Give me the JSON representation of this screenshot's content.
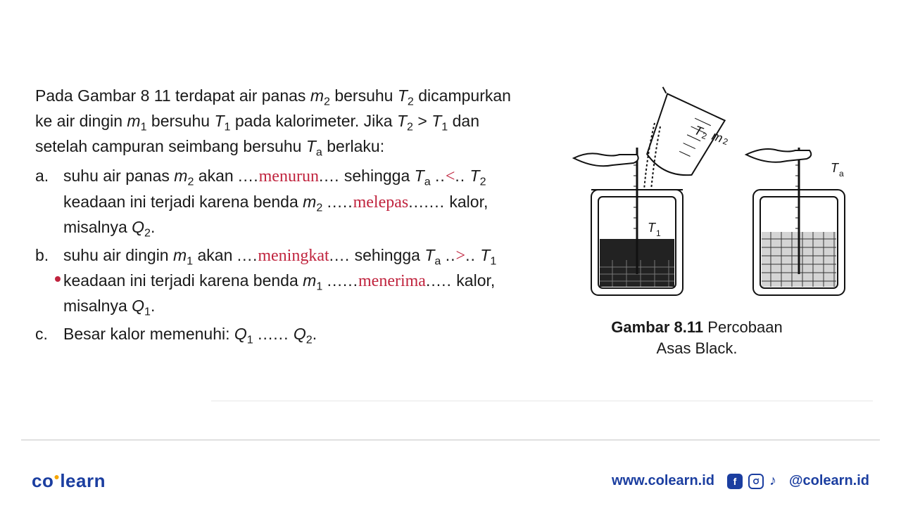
{
  "text": {
    "intro_html": "Pada Gambar 8 11 terdapat air panas <span class='ital'>m</span><span class='sub'>2</span> bersuhu <span class='ital'>T</span><span class='sub'>2</span> dicampurkan ke air dingin <span class='ital'>m</span><span class='sub'>1</span> bersuhu <span class='ital'>T</span><span class='sub'>1</span> pada kalorimeter. Jika <span class='ital'>T</span><span class='sub'>2</span> &gt; <span class='ital'>T</span><span class='sub'>1</span> dan setelah campuran seimbang bersuhu <span class='ital'>T</span><span class='sub'>a</span> berlaku:",
    "a_marker": "a.",
    "a_html": "suhu air panas <span class='ital'>m</span><span class='sub'>2</span> akan <span class='dots'>....</span><span class='ann'>menurun</span><span class='dots'>....</span> sehingga <span class='ital'>T</span><span class='sub'>a</span> <span class='dots'>..</span><span class='ann'>&lt;</span><span class='dots'>..</span> <span class='ital'>T</span><span class='sub'>2</span> keadaan ini terjadi karena benda <span class='ital'>m</span><span class='sub'>2</span> <span class='dots'>.....</span><span class='ann'>melepas</span><span class='dots'>.......</span> kalor, misalnya <span class='ital'>Q</span><span class='sub'>2</span>.",
    "b_marker": "b.",
    "b_html": "suhu air dingin <span class='ital'>m</span><span class='sub'>1</span> akan <span class='dots'>....</span><span class='ann'>meningkat</span><span class='dots'>....</span> sehingga <span class='ital'>T</span><span class='sub'>a</span> <span class='dots'>..</span><span class='ann'>&gt;</span><span class='dots'>..</span> <span class='ital'>T</span><span class='sub'>1</span> keadaan ini terjadi karena benda <span class='ital'>m</span><span class='sub'>1</span> <span class='dots'>......</span><span class='ann'>menerima</span><span class='dots'>.....</span> kalor, misalnya <span class='ital'>Q</span><span class='sub'>1</span>.",
    "c_marker": "c.",
    "c_html": "Besar kalor memenuhi: <span class='ital'>Q</span><span class='sub'>1</span> <span class='dots'>......</span> <span class='ital'>Q</span><span class='sub'>2</span>."
  },
  "figure": {
    "caption_label": "Gambar 8.11",
    "caption_text": "Percobaan Asas Black.",
    "labels": {
      "beaker": "T₂ m₂",
      "left_jar_inside": "T₁",
      "right_therm": "Tₐ"
    },
    "colors": {
      "stroke": "#111111",
      "fill_water": "#222222",
      "fill_hatch": "#333333",
      "bg": "#ffffff"
    }
  },
  "footer": {
    "logo_left": "co",
    "logo_right": "learn",
    "url": "www.colearn.id",
    "handle": "@colearn.id"
  },
  "colors": {
    "text": "#1a1a1a",
    "annotation": "#c0243e",
    "brand": "#1b3ea0",
    "accent": "#f6a500",
    "divider": "#e0e0e0"
  }
}
